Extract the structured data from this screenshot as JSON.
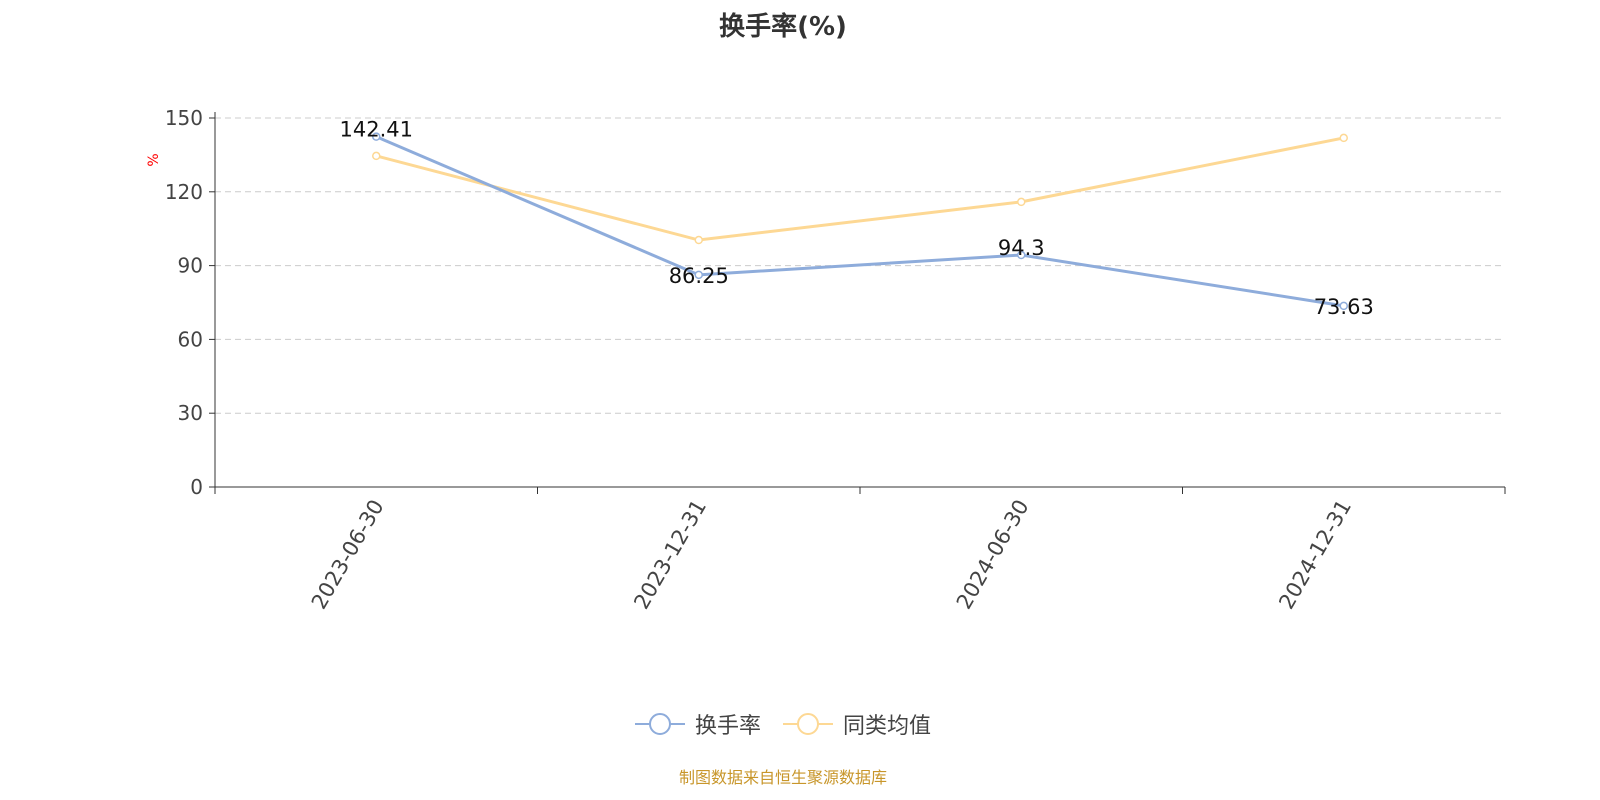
{
  "chart_data": {
    "type": "line",
    "title": "换手率(%)",
    "ylabel": "%",
    "xlabel": "",
    "ylim": [
      0,
      150
    ],
    "yticks": [
      0,
      30,
      60,
      90,
      120,
      150
    ],
    "grid": true,
    "categories": [
      "2023-06-30",
      "2023-12-31",
      "2024-06-30",
      "2024-12-31"
    ],
    "series": [
      {
        "name": "换手率",
        "values": [
          142.41,
          86.25,
          94.3,
          73.63
        ],
        "color": "#8eacdb",
        "labels": [
          "142.41",
          "86.25",
          "94.3",
          "73.63"
        ]
      },
      {
        "name": "同类均值",
        "values": [
          134.6,
          100.4,
          115.9,
          141.9
        ],
        "color": "#fdd894"
      }
    ],
    "legend_position": "bottom"
  },
  "footer": "制图数据来自恒生聚源数据库"
}
